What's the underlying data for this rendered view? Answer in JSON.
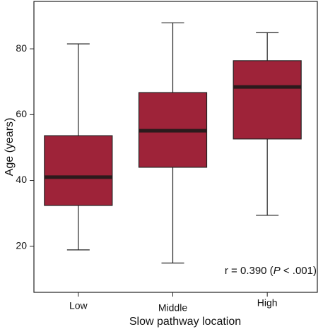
{
  "chart_data": {
    "type": "box",
    "x_label": "Slow pathway location",
    "y_label": "Age (years)",
    "categories": [
      "Low",
      "Middle",
      "High"
    ],
    "boxes": [
      {
        "min": 18.9,
        "q1": 32.4,
        "median": 41,
        "q3": 53.6,
        "max": 81.5
      },
      {
        "min": 14.9,
        "q1": 44,
        "median": 55.1,
        "q3": 66.7,
        "max": 87.9
      },
      {
        "min": 29.4,
        "q1": 52.6,
        "median": 68.4,
        "q3": 76.4,
        "max": 84.9
      }
    ],
    "color": "#9e2339",
    "median_color": "#2b1a1c",
    "ylim": [
      6,
      94.4
    ],
    "yticks": [
      20,
      40,
      60,
      80
    ],
    "annotation": {
      "prefix": "r = 0.390 (",
      "italic": "P",
      "suffix": " < .001)"
    }
  }
}
